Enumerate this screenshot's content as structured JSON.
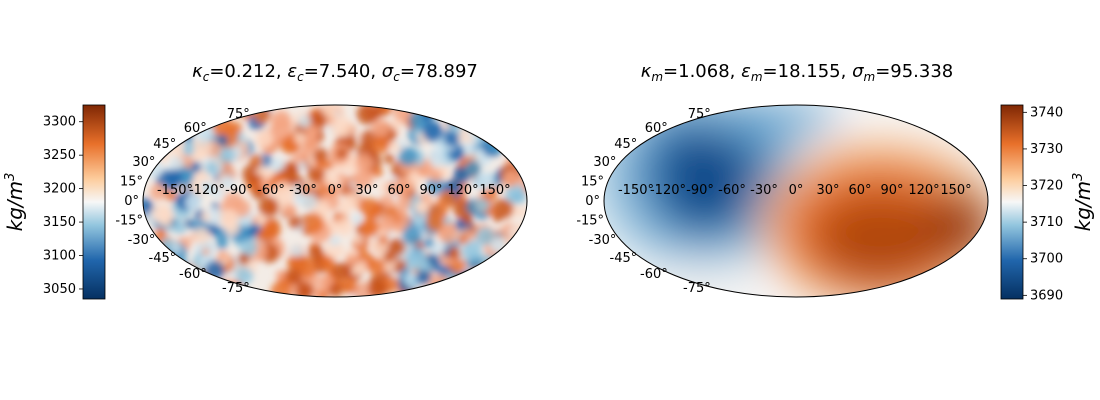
{
  "chart_data": [
    {
      "type": "heatmap",
      "projection": "mollweide",
      "title": {
        "kappa_sym": "κ",
        "kappa_sub": "c",
        "kappa_val": "=0.212, ",
        "eps_sym": "ε",
        "eps_sub": "c",
        "eps_val": "=7.540, ",
        "sigma_sym": "σ",
        "sigma_sub": "c",
        "sigma_val": "=78.897"
      },
      "colorbar": {
        "range": [
          3035,
          3325
        ],
        "ticks": [
          3050,
          3100,
          3150,
          3200,
          3250,
          3300
        ],
        "label_base": "kg/m",
        "label_exp": "3",
        "placement": "left"
      },
      "lon_ticks": [
        -150,
        -120,
        -90,
        -60,
        -30,
        0,
        30,
        60,
        90,
        120,
        150
      ],
      "lat_ticks": [
        75,
        60,
        45,
        30,
        15,
        0,
        -15,
        -30,
        -45,
        -60,
        -75
      ],
      "cmap": "RdBu_r-orange",
      "field": "small-scale noise, no dominant structure"
    },
    {
      "type": "heatmap",
      "projection": "mollweide",
      "title": {
        "kappa_sym": "κ",
        "kappa_sub": "m",
        "kappa_val": "=1.068, ",
        "eps_sym": "ε",
        "eps_sub": "m",
        "eps_val": "=18.155, ",
        "sigma_sym": "σ",
        "sigma_sub": "m",
        "sigma_val": "=95.338"
      },
      "colorbar": {
        "range": [
          3689,
          3742
        ],
        "ticks": [
          3690,
          3700,
          3710,
          3720,
          3730,
          3740
        ],
        "label_base": "kg/m",
        "label_exp": "3",
        "placement": "right"
      },
      "lon_ticks": [
        -150,
        -120,
        -90,
        -60,
        -30,
        0,
        30,
        60,
        90,
        120,
        150
      ],
      "lat_ticks": [
        75,
        60,
        45,
        30,
        15,
        0,
        -15,
        -30,
        -45,
        -60,
        -75
      ],
      "cmap": "RdBu_r-orange",
      "field": "large-scale: low (blue) in west/north-west, high (orange) in south-east"
    }
  ],
  "colors": {
    "low": "#053061",
    "mid_low": "#4393c3",
    "mid": "#f7f7f7",
    "mid_high": "#f4a05a",
    "high": "#7f2704"
  }
}
